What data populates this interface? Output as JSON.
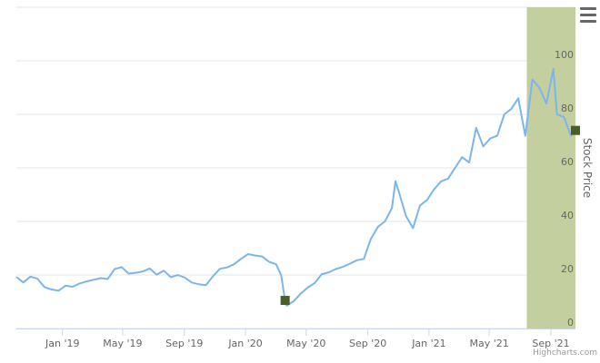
{
  "chart_data": {
    "type": "line",
    "title": "",
    "xlabel": "",
    "ylabel": "Stock Price",
    "ylim": [
      0,
      120
    ],
    "xlim": [
      "2018-10-01",
      "2021-10-20"
    ],
    "y_ticks": [
      0,
      20,
      40,
      60,
      80,
      100
    ],
    "x_ticks": [
      {
        "date": "2019-01-01",
        "label": "Jan '19"
      },
      {
        "date": "2019-05-01",
        "label": "May '19"
      },
      {
        "date": "2019-09-01",
        "label": "Sep '19"
      },
      {
        "date": "2020-01-01",
        "label": "Jan '20"
      },
      {
        "date": "2020-05-01",
        "label": "May '20"
      },
      {
        "date": "2020-09-01",
        "label": "Sep '20"
      },
      {
        "date": "2021-01-01",
        "label": "Jan '21"
      },
      {
        "date": "2021-05-01",
        "label": "May '21"
      },
      {
        "date": "2021-09-01",
        "label": "Sep '21"
      }
    ],
    "grid": true,
    "line_color": "#7cb5ec",
    "band_color": "#c3cf9e",
    "marker_color": "#4b5e2a",
    "highlight_band": {
      "from": "2021-07-15",
      "to": "2021-10-20"
    },
    "markers": [
      {
        "x": "2020-03-20",
        "y": 10.5
      },
      {
        "x": "2021-10-20",
        "y": 74
      }
    ],
    "series": [
      {
        "points": [
          [
            "2018-10-01",
            19.3
          ],
          [
            "2018-10-15",
            17.2
          ],
          [
            "2018-10-29",
            19.4
          ],
          [
            "2018-11-12",
            18.6
          ],
          [
            "2018-11-26",
            15.5
          ],
          [
            "2018-12-10",
            14.6
          ],
          [
            "2018-12-24",
            14.1
          ],
          [
            "2019-01-07",
            16.0
          ],
          [
            "2019-01-21",
            15.6
          ],
          [
            "2019-02-04",
            16.8
          ],
          [
            "2019-02-18",
            17.6
          ],
          [
            "2019-03-04",
            18.2
          ],
          [
            "2019-03-18",
            18.8
          ],
          [
            "2019-04-01",
            18.5
          ],
          [
            "2019-04-15",
            22.2
          ],
          [
            "2019-04-29",
            22.9
          ],
          [
            "2019-05-13",
            20.5
          ],
          [
            "2019-05-27",
            20.8
          ],
          [
            "2019-06-10",
            21.3
          ],
          [
            "2019-06-24",
            22.4
          ],
          [
            "2019-07-08",
            20.1
          ],
          [
            "2019-07-22",
            21.6
          ],
          [
            "2019-08-05",
            19.2
          ],
          [
            "2019-08-19",
            20.0
          ],
          [
            "2019-09-02",
            19.0
          ],
          [
            "2019-09-16",
            17.2
          ],
          [
            "2019-09-30",
            16.5
          ],
          [
            "2019-10-14",
            16.2
          ],
          [
            "2019-10-28",
            19.5
          ],
          [
            "2019-11-11",
            22.3
          ],
          [
            "2019-11-25",
            22.8
          ],
          [
            "2019-12-09",
            24.0
          ],
          [
            "2019-12-23",
            26.0
          ],
          [
            "2020-01-06",
            27.8
          ],
          [
            "2020-01-20",
            27.3
          ],
          [
            "2020-02-03",
            26.9
          ],
          [
            "2020-02-17",
            24.9
          ],
          [
            "2020-03-02",
            24.0
          ],
          [
            "2020-03-12",
            20.0
          ],
          [
            "2020-03-20",
            10.5
          ],
          [
            "2020-03-23",
            8.5
          ],
          [
            "2020-04-06",
            10.2
          ],
          [
            "2020-04-20",
            13.0
          ],
          [
            "2020-05-04",
            15.3
          ],
          [
            "2020-05-18",
            17.0
          ],
          [
            "2020-06-01",
            20.3
          ],
          [
            "2020-06-15",
            21.0
          ],
          [
            "2020-06-29",
            22.2
          ],
          [
            "2020-07-13",
            23.0
          ],
          [
            "2020-07-27",
            24.2
          ],
          [
            "2020-08-10",
            25.5
          ],
          [
            "2020-08-24",
            26.0
          ],
          [
            "2020-09-07",
            33.5
          ],
          [
            "2020-09-21",
            38.0
          ],
          [
            "2020-10-05",
            40.0
          ],
          [
            "2020-10-19",
            45.0
          ],
          [
            "2020-10-26",
            55.0
          ],
          [
            "2020-11-02",
            51.0
          ],
          [
            "2020-11-16",
            42.0
          ],
          [
            "2020-11-30",
            37.5
          ],
          [
            "2020-12-14",
            46.0
          ],
          [
            "2020-12-28",
            48.0
          ],
          [
            "2021-01-11",
            52.0
          ],
          [
            "2021-01-25",
            55.0
          ],
          [
            "2021-02-08",
            56.0
          ],
          [
            "2021-02-22",
            60.0
          ],
          [
            "2021-03-08",
            64.0
          ],
          [
            "2021-03-22",
            62.0
          ],
          [
            "2021-04-05",
            75.0
          ],
          [
            "2021-04-19",
            68.0
          ],
          [
            "2021-05-03",
            71.0
          ],
          [
            "2021-05-17",
            72.0
          ],
          [
            "2021-05-31",
            80.0
          ],
          [
            "2021-06-14",
            82.0
          ],
          [
            "2021-06-28",
            86.0
          ],
          [
            "2021-07-12",
            72.0
          ],
          [
            "2021-07-26",
            93.0
          ],
          [
            "2021-08-09",
            90.0
          ],
          [
            "2021-08-23",
            84.0
          ],
          [
            "2021-09-06",
            97.0
          ],
          [
            "2021-09-13",
            80.0
          ],
          [
            "2021-09-27",
            79.0
          ],
          [
            "2021-10-11",
            72.0
          ],
          [
            "2021-10-20",
            74.0
          ]
        ]
      }
    ]
  },
  "credits": "Highcharts.com",
  "menu": {
    "icon": "hamburger-menu-icon"
  }
}
